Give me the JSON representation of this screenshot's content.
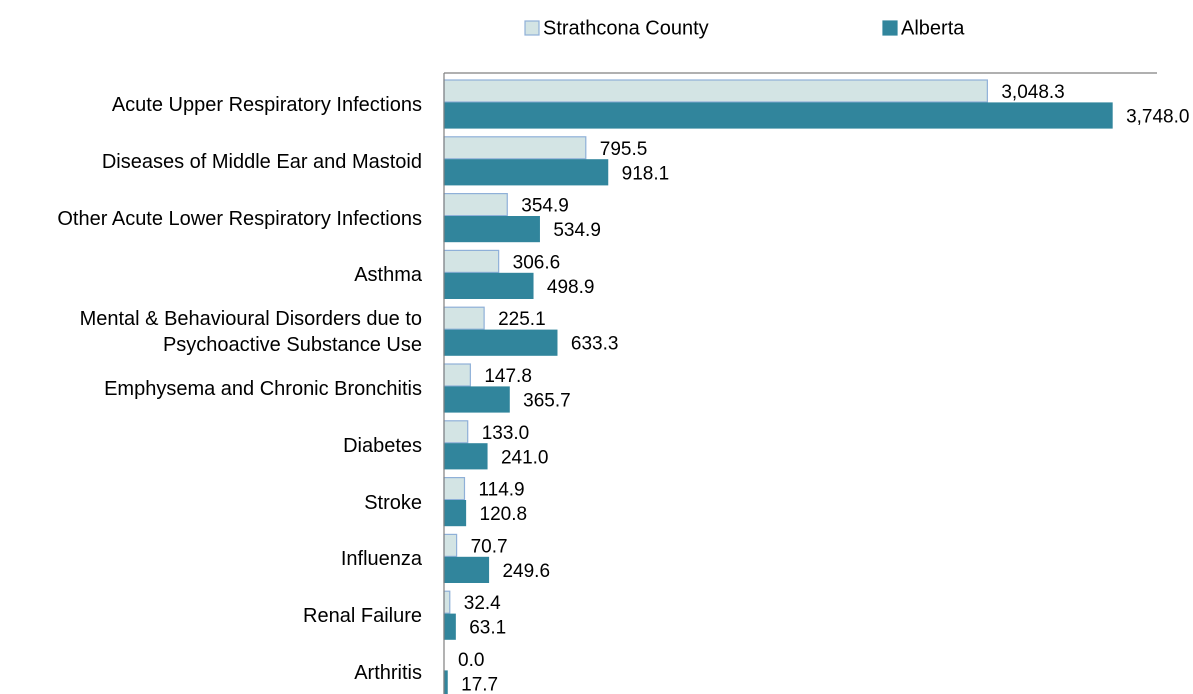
{
  "chart_data": {
    "type": "hbar",
    "categories": [
      "Acute Upper Respiratory Infections",
      "Diseases of Middle Ear and Mastoid",
      "Other Acute Lower Respiratory Infections",
      "Asthma",
      "Mental & Behavioural Disorders due to Psychoactive Substance Use",
      "Emphysema and Chronic Bronchitis",
      "Diabetes",
      "Stroke",
      "Influenza",
      "Renal Failure",
      "Arthritis"
    ],
    "series": [
      {
        "name": "Strathcona County",
        "color": "#d3e4e4",
        "edge": "#8fb0d8",
        "values": [
          3048.3,
          795.5,
          354.9,
          306.6,
          225.1,
          147.8,
          133.0,
          114.9,
          70.7,
          32.4,
          0.0
        ],
        "value_labels": [
          "3,048.3",
          "795.5",
          "354.9",
          "306.6",
          "225.1",
          "147.8",
          "133.0",
          "114.9",
          "70.7",
          "32.4",
          "0.0"
        ]
      },
      {
        "name": "Alberta",
        "color": "#31859c",
        "edge": "#31859c",
        "values": [
          3748.0,
          918.1,
          534.9,
          498.9,
          633.3,
          365.7,
          241.0,
          120.8,
          249.6,
          63.1,
          17.7
        ],
        "value_labels": [
          "3,748.0",
          "918.1",
          "534.9",
          "498.9",
          "633.3",
          "365.7",
          "241.0",
          "120.8",
          "249.6",
          "63.1",
          "17.7"
        ]
      }
    ],
    "xlim": [
      0,
      4000
    ],
    "legend": "top"
  }
}
